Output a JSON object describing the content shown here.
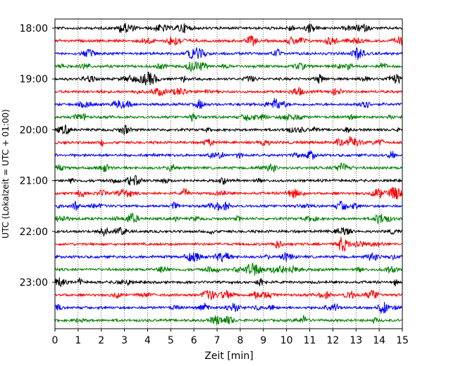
{
  "chart_data": {
    "type": "line",
    "title": "",
    "xlabel": "Zeit  [min]",
    "ylabel": "UTC (Lokalzeit = UTC + 01:00)",
    "xlim": [
      0,
      15
    ],
    "x_ticks": [
      "0",
      "1",
      "2",
      "3",
      "4",
      "5",
      "6",
      "7",
      "8",
      "9",
      "10",
      "11",
      "12",
      "13",
      "14",
      "15"
    ],
    "y_tick_labels": [
      "18:00",
      "19:00",
      "20:00",
      "21:00",
      "22:00",
      "23:00"
    ],
    "grid": "vertical-dotted",
    "trace_colors": [
      "#000000",
      "#ff0000",
      "#0000ff",
      "#008000"
    ],
    "traces": [
      {
        "start": "18:00",
        "color": "#000000"
      },
      {
        "start": "18:15",
        "color": "#ff0000"
      },
      {
        "start": "18:30",
        "color": "#0000ff"
      },
      {
        "start": "18:45",
        "color": "#008000"
      },
      {
        "start": "19:00",
        "color": "#000000"
      },
      {
        "start": "19:15",
        "color": "#ff0000"
      },
      {
        "start": "19:30",
        "color": "#0000ff"
      },
      {
        "start": "19:45",
        "color": "#008000"
      },
      {
        "start": "20:00",
        "color": "#000000"
      },
      {
        "start": "20:15",
        "color": "#ff0000"
      },
      {
        "start": "20:30",
        "color": "#0000ff"
      },
      {
        "start": "20:45",
        "color": "#008000"
      },
      {
        "start": "21:00",
        "color": "#000000"
      },
      {
        "start": "21:15",
        "color": "#ff0000"
      },
      {
        "start": "21:30",
        "color": "#0000ff"
      },
      {
        "start": "21:45",
        "color": "#008000"
      },
      {
        "start": "22:00",
        "color": "#000000"
      },
      {
        "start": "22:15",
        "color": "#ff0000"
      },
      {
        "start": "22:30",
        "color": "#0000ff"
      },
      {
        "start": "22:45",
        "color": "#008000"
      },
      {
        "start": "23:00",
        "color": "#000000"
      },
      {
        "start": "23:15",
        "color": "#ff0000"
      },
      {
        "start": "23:30",
        "color": "#0000ff"
      },
      {
        "start": "23:45",
        "color": "#008000"
      }
    ]
  }
}
